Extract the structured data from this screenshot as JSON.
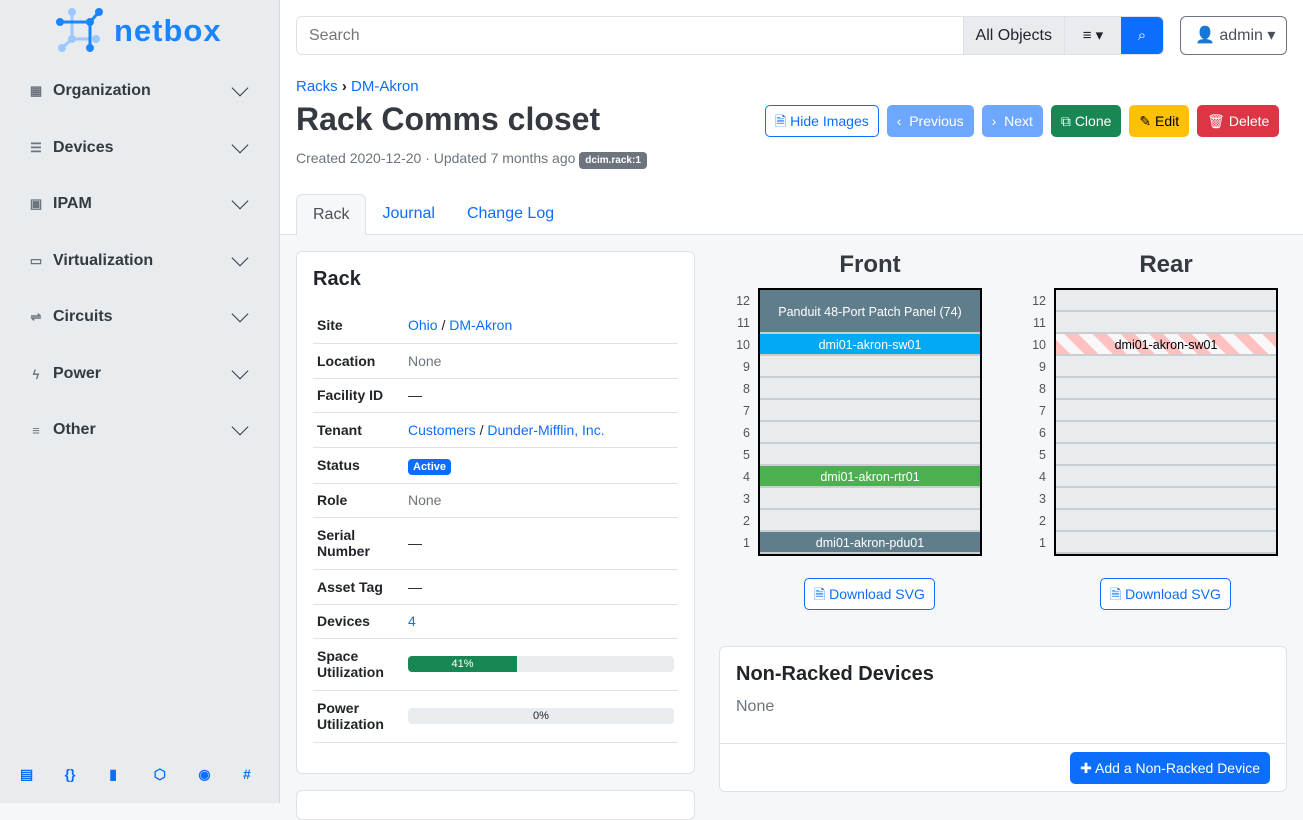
{
  "brand": "netbox",
  "sidebar": {
    "items": [
      {
        "label": "Organization",
        "icon": "building-icon"
      },
      {
        "label": "Devices",
        "icon": "server-icon"
      },
      {
        "label": "IPAM",
        "icon": "ip-icon"
      },
      {
        "label": "Virtualization",
        "icon": "monitor-icon"
      },
      {
        "label": "Circuits",
        "icon": "circuit-icon"
      },
      {
        "label": "Power",
        "icon": "flash-icon"
      },
      {
        "label": "Other",
        "icon": "notes-icon"
      }
    ],
    "footer_icons": [
      "book-icon",
      "api-icon",
      "docs-icon",
      "graphql-icon",
      "github-icon",
      "slack-icon"
    ]
  },
  "search": {
    "placeholder": "Search",
    "scope": "All Objects"
  },
  "user": {
    "name": "admin"
  },
  "breadcrumb": [
    "Racks",
    "DM-Akron"
  ],
  "page": {
    "title": "Rack Comms closet",
    "meta": "Created 2020-12-20 · Updated 7 months ago",
    "tag": "dcim.rack:1"
  },
  "actions": {
    "hide_images": "Hide Images",
    "previous": "Previous",
    "next": "Next",
    "clone": "Clone",
    "edit": "Edit",
    "delete": "Delete"
  },
  "tabs": [
    "Rack",
    "Journal",
    "Change Log"
  ],
  "rack_card": {
    "title": "Rack",
    "site": {
      "label": "Site",
      "region": "Ohio",
      "site": "DM-Akron"
    },
    "location": {
      "label": "Location",
      "value": "None"
    },
    "facility": {
      "label": "Facility ID",
      "value": "—"
    },
    "tenant": {
      "label": "Tenant",
      "group": "Customers",
      "tenant": "Dunder-Mifflin, Inc."
    },
    "status": {
      "label": "Status",
      "value": "Active"
    },
    "role": {
      "label": "Role",
      "value": "None"
    },
    "serial": {
      "label": "Serial Number",
      "value": "—"
    },
    "asset": {
      "label": "Asset Tag",
      "value": "—"
    },
    "devices": {
      "label": "Devices",
      "value": "4"
    },
    "space": {
      "label": "Space Utilization",
      "value": "41%",
      "percent": 41
    },
    "power": {
      "label": "Power Utilization",
      "value": "0%",
      "percent": 0
    }
  },
  "elevation": {
    "front_title": "Front",
    "rear_title": "Rear",
    "download": "Download SVG",
    "front": [
      {
        "name": "Panduit 48-Port Patch Panel (74)",
        "top": 12,
        "height": 2,
        "color": "#607d8b"
      },
      {
        "name": "dmi01-akron-sw01",
        "top": 10,
        "height": 1,
        "color": "#03a9f4"
      },
      {
        "name": "dmi01-akron-rtr01",
        "top": 4,
        "height": 1,
        "color": "#4caf50"
      },
      {
        "name": "dmi01-akron-pdu01",
        "top": 1,
        "height": 1,
        "color": "#607d8b"
      }
    ],
    "rear": [
      {
        "name": "dmi01-akron-sw01",
        "top": 10,
        "height": 1,
        "color": "striped"
      }
    ]
  },
  "nonracked": {
    "title": "Non-Racked Devices",
    "value": "None",
    "add": "Add a Non-Racked Device"
  }
}
